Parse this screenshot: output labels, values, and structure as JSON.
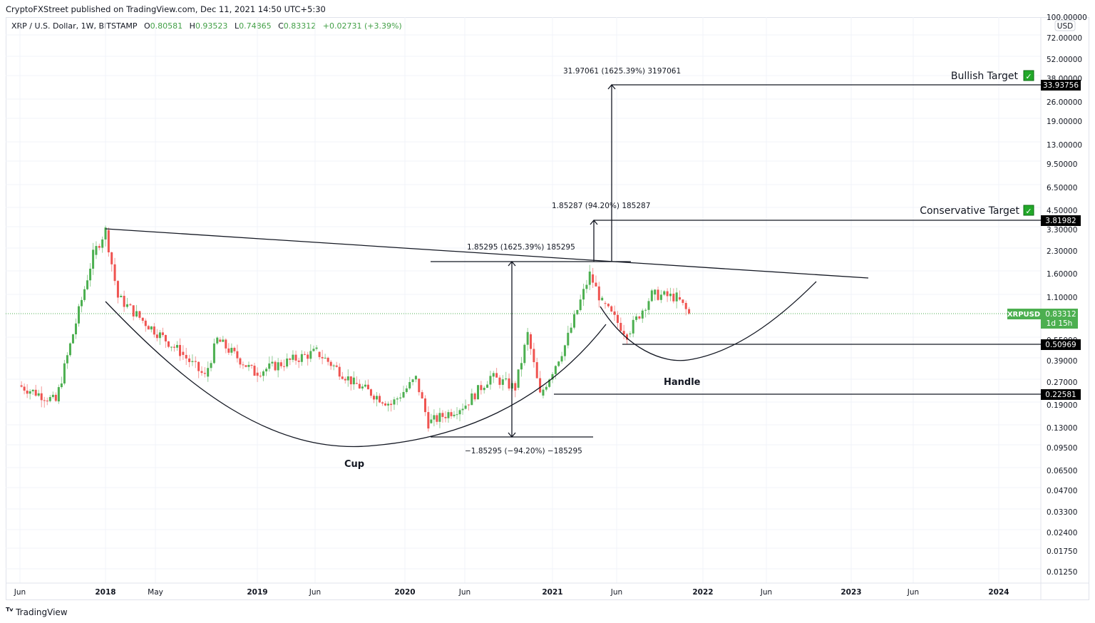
{
  "header": {
    "publisher_line": "CryptoFXStreet published on TradingView.com, Dec 11, 2021 14:50 UTC+5:30"
  },
  "legend": {
    "symbol": "XRP / U.S. Dollar, 1W, BITSTAMP",
    "open_label": "O",
    "open": "0.80581",
    "high_label": "H",
    "high": "0.93523",
    "low_label": "L",
    "low": "0.74865",
    "close_label": "C",
    "close": "0.83312",
    "change": "+0.02731 (+3.39%)"
  },
  "price_axis": {
    "currency": "USD",
    "ticks": [
      "100.00000",
      "72.00000",
      "52.00000",
      "38.00000",
      "26.00000",
      "19.00000",
      "13.00000",
      "9.50000",
      "6.50000",
      "4.50000",
      "3.30000",
      "2.30000",
      "1.60000",
      "1.10000",
      "0.55000",
      "0.39000",
      "0.27000",
      "0.19000",
      "0.13000",
      "0.09500",
      "0.06500",
      "0.04700",
      "0.03300",
      "0.02400",
      "0.01750",
      "0.01250"
    ],
    "price_labels": [
      {
        "value": "33.93756",
        "color": "#000000"
      },
      {
        "value": "3.81982",
        "color": "#000000"
      },
      {
        "value": "0.50969",
        "color": "#000000"
      },
      {
        "value": "0.22581",
        "color": "#000000"
      }
    ],
    "current": {
      "symbol": "XRPUSD",
      "price": "0.83312",
      "countdown": "1d 15h",
      "color": "#4caf50"
    }
  },
  "time_axis": {
    "ticks": [
      {
        "label": "Jun",
        "bold": false
      },
      {
        "label": "2018",
        "bold": true
      },
      {
        "label": "May",
        "bold": false
      },
      {
        "label": "2019",
        "bold": true
      },
      {
        "label": "Jun",
        "bold": false
      },
      {
        "label": "2020",
        "bold": true
      },
      {
        "label": "Jun",
        "bold": false
      },
      {
        "label": "2021",
        "bold": true
      },
      {
        "label": "Jun",
        "bold": false
      },
      {
        "label": "2022",
        "bold": true
      },
      {
        "label": "Jun",
        "bold": false
      },
      {
        "label": "2023",
        "bold": true
      },
      {
        "label": "Jun",
        "bold": false
      },
      {
        "label": "2024",
        "bold": true
      }
    ]
  },
  "annotations": {
    "bullish_target": "Bullish Target",
    "conservative_target": "Conservative Target",
    "check_icon": "✓",
    "cup": "Cup",
    "handle": "Handle",
    "measure_bullish": "31.97061 (1625.39%) 3197061",
    "measure_conservative": "1.85287 (94.20%) 185287",
    "measure_up": "1.85295 (1625.39%) 185295",
    "measure_down": "−1.85295 (−94.20%) −185295"
  },
  "footer": {
    "brand": "TradingView"
  },
  "colors": {
    "up": "#4caf50",
    "down": "#ef5350",
    "grid": "#f0f3fa",
    "line": "#131722",
    "check_bg": "#22a829"
  },
  "chart_data": {
    "type": "candlestick",
    "title": "XRP / U.S. Dollar, 1W, BITSTAMP",
    "scale": "log",
    "ylim": [
      0.0115,
      100
    ],
    "x_range": [
      "2017-05",
      "2024-03"
    ],
    "pattern": "Cup and Handle",
    "approx_weekly_close_path": [
      {
        "date": "2017-06",
        "close": 0.26
      },
      {
        "date": "2017-09",
        "close": 0.2
      },
      {
        "date": "2017-12",
        "close": 2.2
      },
      {
        "date": "2018-01",
        "close": 3.3
      },
      {
        "date": "2018-02",
        "close": 1.1
      },
      {
        "date": "2018-04",
        "close": 0.75
      },
      {
        "date": "2018-07",
        "close": 0.45
      },
      {
        "date": "2018-09",
        "close": 0.3
      },
      {
        "date": "2018-10",
        "close": 0.55
      },
      {
        "date": "2019-01",
        "close": 0.32
      },
      {
        "date": "2019-06",
        "close": 0.45
      },
      {
        "date": "2019-09",
        "close": 0.27
      },
      {
        "date": "2019-12",
        "close": 0.19
      },
      {
        "date": "2020-02",
        "close": 0.29
      },
      {
        "date": "2020-03",
        "close": 0.14
      },
      {
        "date": "2020-06",
        "close": 0.19
      },
      {
        "date": "2020-08",
        "close": 0.3
      },
      {
        "date": "2020-10",
        "close": 0.25
      },
      {
        "date": "2020-11",
        "close": 0.6
      },
      {
        "date": "2020-12",
        "close": 0.22
      },
      {
        "date": "2021-02",
        "close": 0.5
      },
      {
        "date": "2021-04",
        "close": 1.6
      },
      {
        "date": "2021-05",
        "close": 1.0
      },
      {
        "date": "2021-07",
        "close": 0.6
      },
      {
        "date": "2021-09",
        "close": 1.15
      },
      {
        "date": "2021-11",
        "close": 1.1
      },
      {
        "date": "2021-12",
        "close": 0.83312
      }
    ],
    "horizontal_levels": [
      33.93756,
      3.81982,
      0.50969,
      0.22581
    ],
    "trendline": {
      "from": {
        "date": "2018-01",
        "price": 3.3
      },
      "to": {
        "date": "2023-01",
        "price": 1.45
      }
    },
    "measurements": [
      {
        "label": "31.97061 (1625.39%) 3197061",
        "from": 1.97,
        "to": 33.94
      },
      {
        "label": "1.85287 (94.20%) 185287",
        "from": 1.97,
        "to": 3.82
      },
      {
        "label": "1.85295 (1625.39%) 185295",
        "from": 0.114,
        "to": 1.97
      },
      {
        "label": "−1.85295 (−94.20%) −185295",
        "from": 1.97,
        "to": 0.114
      }
    ]
  }
}
